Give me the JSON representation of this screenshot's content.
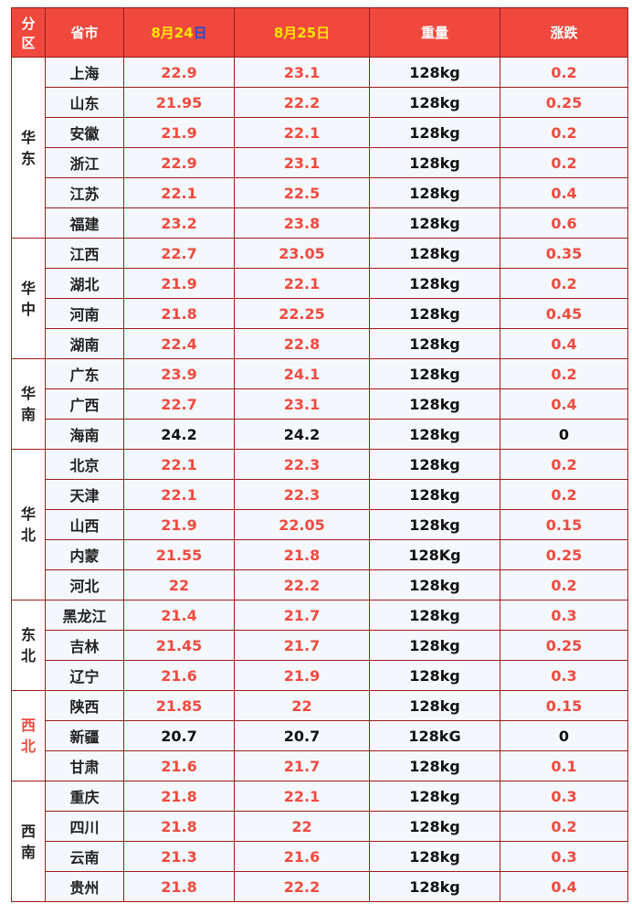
{
  "header": {
    "region": [
      "分",
      "区"
    ],
    "province": "省市",
    "date1_prefix": "8月24",
    "date1_suffix": "日",
    "date2": "8月25日",
    "weight": "重量",
    "change": "涨跌"
  },
  "regions": [
    {
      "name": [
        "华",
        "东"
      ],
      "color": "#222222",
      "rows": [
        {
          "province": "上海",
          "d1": "22.9",
          "d2": "23.1",
          "weight": "128kg",
          "change": "0.2"
        },
        {
          "province": "山东",
          "d1": "21.95",
          "d2": "22.2",
          "weight": "128kg",
          "change": "0.25"
        },
        {
          "province": "安徽",
          "d1": "21.9",
          "d2": "22.1",
          "weight": "128kg",
          "change": "0.2"
        },
        {
          "province": "浙江",
          "d1": "22.9",
          "d2": "23.1",
          "weight": "128kg",
          "change": "0.2"
        },
        {
          "province": "江苏",
          "d1": "22.1",
          "d2": "22.5",
          "weight": "128kg",
          "change": "0.4"
        },
        {
          "province": "福建",
          "d1": "23.2",
          "d2": "23.8",
          "weight": "128kg",
          "change": "0.6"
        }
      ]
    },
    {
      "name": [
        "华",
        "中"
      ],
      "color": "#222222",
      "rows": [
        {
          "province": "江西",
          "d1": "22.7",
          "d2": "23.05",
          "weight": "128kg",
          "change": "0.35"
        },
        {
          "province": "湖北",
          "d1": "21.9",
          "d2": "22.1",
          "weight": "128kg",
          "change": "0.2"
        },
        {
          "province": "河南",
          "d1": "21.8",
          "d2": "22.25",
          "weight": "128kg",
          "change": "0.45"
        },
        {
          "province": "湖南",
          "d1": "22.4",
          "d2": "22.8",
          "weight": "128kg",
          "change": "0.4"
        }
      ]
    },
    {
      "name": [
        "华",
        "南"
      ],
      "color": "#222222",
      "rows": [
        {
          "province": "广东",
          "d1": "23.9",
          "d2": "24.1",
          "weight": "128kg",
          "change": "0.2"
        },
        {
          "province": "广西",
          "d1": "22.7",
          "d2": "23.1",
          "weight": "128kg",
          "change": "0.4"
        },
        {
          "province": "海南",
          "d1": "24.2",
          "d2": "24.2",
          "weight": "128kg",
          "change": "0"
        }
      ]
    },
    {
      "name": [
        "华",
        "北"
      ],
      "color": "#222222",
      "rows": [
        {
          "province": "北京",
          "d1": "22.1",
          "d2": "22.3",
          "weight": "128kg",
          "change": "0.2"
        },
        {
          "province": "天津",
          "d1": "22.1",
          "d2": "22.3",
          "weight": "128kg",
          "change": "0.2"
        },
        {
          "province": "山西",
          "d1": "21.9",
          "d2": "22.05",
          "weight": "128kg",
          "change": "0.15"
        },
        {
          "province": "内蒙",
          "d1": "21.55",
          "d2": "21.8",
          "weight": "128Kg",
          "change": "0.25"
        },
        {
          "province": "河北",
          "d1": "22",
          "d2": "22.2",
          "weight": "128kg",
          "change": "0.2"
        }
      ]
    },
    {
      "name": [
        "东",
        "北"
      ],
      "color": "#222222",
      "rows": [
        {
          "province": "黑龙江",
          "d1": "21.4",
          "d2": "21.7",
          "weight": "128kg",
          "change": "0.3"
        },
        {
          "province": "吉林",
          "d1": "21.45",
          "d2": "21.7",
          "weight": "128kg",
          "change": "0.25"
        },
        {
          "province": "辽宁",
          "d1": "21.6",
          "d2": "21.9",
          "weight": "128kg",
          "change": "0.3"
        }
      ]
    },
    {
      "name": [
        "西",
        "北"
      ],
      "color": "#f04a3f",
      "rows": [
        {
          "province": "陕西",
          "d1": "21.85",
          "d2": "22",
          "weight": "128kg",
          "change": "0.15"
        },
        {
          "province": "新疆",
          "d1": "20.7",
          "d2": "20.7",
          "weight": "128kG",
          "change": "0"
        },
        {
          "province": "甘肃",
          "d1": "21.6",
          "d2": "21.7",
          "weight": "128kg",
          "change": "0.1"
        }
      ]
    },
    {
      "name": [
        "西",
        "南"
      ],
      "color": "#222222",
      "rows": [
        {
          "province": "重庆",
          "d1": "21.8",
          "d2": "22.1",
          "weight": "128kg",
          "change": "0.3"
        },
        {
          "province": "四川",
          "d1": "21.8",
          "d2": "22",
          "weight": "128kg",
          "change": "0.2"
        },
        {
          "province": "云南",
          "d1": "21.3",
          "d2": "21.6",
          "weight": "128kg",
          "change": "0.3"
        },
        {
          "province": "贵州",
          "d1": "21.8",
          "d2": "22.2",
          "weight": "128kg",
          "change": "0.4"
        }
      ]
    }
  ]
}
